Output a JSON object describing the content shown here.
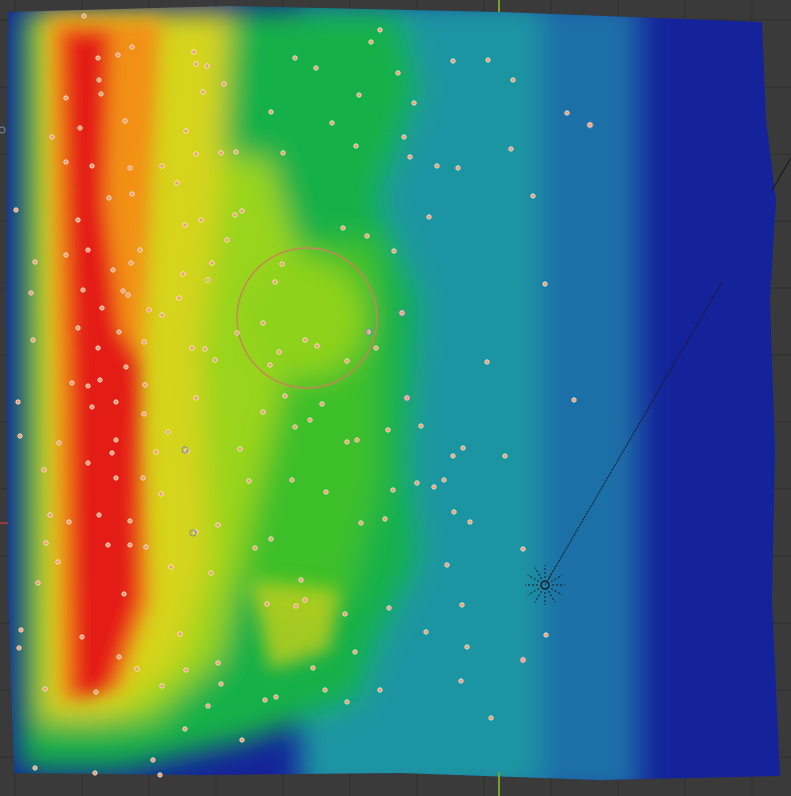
{
  "viewport": {
    "kind": "3d-viewport",
    "background": "#3a3a3a",
    "grid_color": "#2e2e2e",
    "axis_y_color": "#6b8a2a",
    "axis_x_color": "#8a3a3a"
  },
  "heatmap": {
    "colormap": [
      "#0d1a80",
      "#15409c",
      "#1a8fa0",
      "#13b05a",
      "#1fc21f",
      "#7cd21a",
      "#d8d81a",
      "#f08a10",
      "#e81818"
    ]
  },
  "selection_circle": {
    "color": "#c8845a"
  },
  "light_gizmo": {
    "color": "#1a1a1a"
  },
  "vertex_color": "#f0a070",
  "vertex_outline_color": "#7a8ab0"
}
